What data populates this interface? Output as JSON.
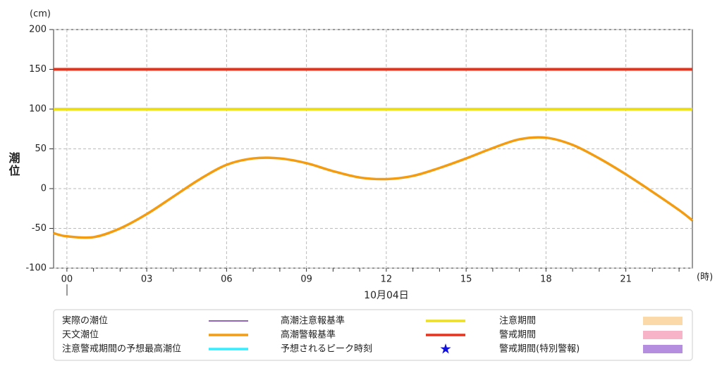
{
  "chart_data": {
    "type": "line",
    "y_unit": "(cm)",
    "y_label": "潮位",
    "x_unit": "(時)",
    "x_label": "10月04日",
    "x": [
      -0.5,
      0,
      1,
      2,
      3,
      4,
      5,
      6,
      7,
      8,
      9,
      10,
      11,
      12,
      13,
      14,
      15,
      16,
      17,
      18,
      19,
      20,
      21,
      22,
      23,
      23.5
    ],
    "series": [
      {
        "name": "天文潮位",
        "color": "#f39c12",
        "values": [
          -56,
          -60,
          -61,
          -50,
          -32,
          -10,
          12,
          30,
          38,
          38,
          32,
          22,
          14,
          12,
          16,
          26,
          38,
          51,
          62,
          64,
          55,
          38,
          18,
          -4,
          -27,
          -40
        ]
      }
    ],
    "reference_lines": [
      {
        "value": 100,
        "color": "#eedf1c"
      },
      {
        "value": 150,
        "color": "#e8301a"
      }
    ],
    "xlim": [
      -0.5,
      23.5
    ],
    "xticks": [
      {
        "value": 0,
        "label": "00"
      },
      {
        "value": 3,
        "label": "03"
      },
      {
        "value": 6,
        "label": "06"
      },
      {
        "value": 9,
        "label": "09"
      },
      12,
      15,
      18,
      21
    ],
    "xminor_ticks": [
      0,
      1,
      2,
      3,
      4,
      5,
      6,
      7,
      8,
      9,
      10,
      11,
      12,
      13,
      14,
      15,
      16,
      17,
      18,
      19,
      20,
      21,
      22,
      23
    ],
    "ylim": [
      -100,
      200
    ],
    "yticks": [
      -100,
      -50,
      0,
      50,
      100,
      150,
      200
    ],
    "grid": true,
    "legend": [
      {
        "name": "実際の潮位",
        "color": "#7030a0",
        "symbol": "thin-line"
      },
      {
        "name": "天文潮位",
        "color": "#f39c12",
        "symbol": "line"
      },
      {
        "name": "注意警戒期間の予想最高潮位",
        "color": "#33eeff",
        "symbol": "line"
      },
      {
        "name": "高潮注意報基準",
        "color": "#eedf1c",
        "symbol": "line"
      },
      {
        "name": "高潮警報基準",
        "color": "#e8301a",
        "symbol": "line"
      },
      {
        "name": "予想されるピーク時刻",
        "color": "#1010e0",
        "symbol": "star"
      },
      {
        "name": "注意期間",
        "color": "#fbd9a8",
        "symbol": "box"
      },
      {
        "name": "警戒期間",
        "color": "#f7b3c8",
        "symbol": "box"
      },
      {
        "name": "警戒期間(特別警報)",
        "color": "#b58ee0",
        "symbol": "box"
      }
    ]
  }
}
